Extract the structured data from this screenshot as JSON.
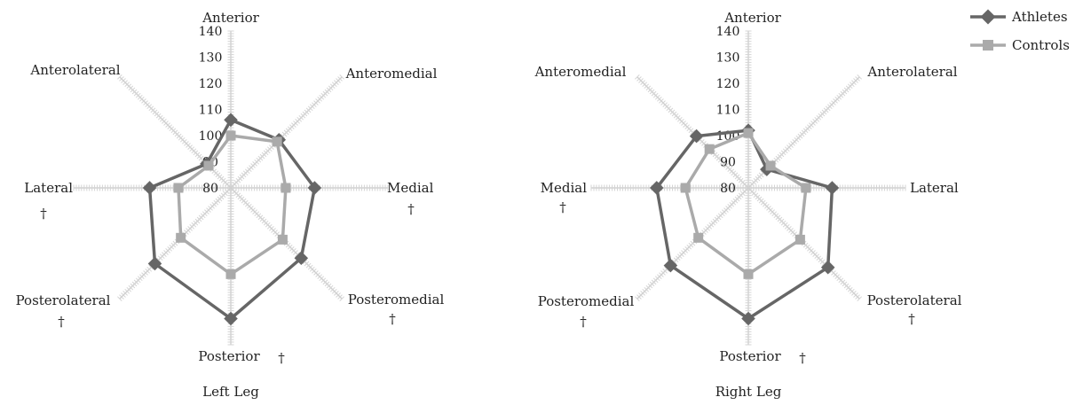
{
  "legend": {
    "position": "top-right",
    "entries": [
      {
        "name": "Athletes",
        "color": "#666666",
        "marker": "diamond"
      },
      {
        "name": "Controls",
        "color": "#aaaaaa",
        "marker": "square"
      }
    ]
  },
  "chart_data": [
    {
      "type": "radar",
      "title": "Left Leg",
      "axes": [
        "Anterior",
        "Anteromedial",
        "Medial",
        "Posteromedial",
        "Posterior",
        "Posterolateral",
        "Lateral",
        "Anterolateral"
      ],
      "significant": [
        false,
        false,
        true,
        true,
        true,
        true,
        true,
        false
      ],
      "significance_marker": "†",
      "rlim": [
        80,
        140
      ],
      "ticks": [
        "140",
        "130",
        "120",
        "110",
        "100",
        "90",
        "80"
      ],
      "series": [
        {
          "name": "Athletes",
          "values": [
            106,
            106,
            112,
            118,
            130,
            121,
            111,
            93
          ]
        },
        {
          "name": "Controls",
          "values": [
            100,
            105,
            101,
            108,
            113,
            107,
            100,
            92
          ]
        }
      ]
    },
    {
      "type": "radar",
      "title": "Right Leg",
      "axes": [
        "Anterior",
        "Anterolateral",
        "Lateral",
        "Posterolateral",
        "Posterior",
        "Posteromedial",
        "Medial",
        "Anteromedial"
      ],
      "significant": [
        false,
        false,
        false,
        true,
        true,
        true,
        true,
        false
      ],
      "significance_marker": "†",
      "rlim": [
        80,
        140
      ],
      "ticks": [
        "140",
        "130",
        "120",
        "110",
        "100",
        "90",
        "80"
      ],
      "series": [
        {
          "name": "Athletes",
          "values": [
            102,
            90,
            112,
            123,
            130,
            122,
            115,
            108
          ]
        },
        {
          "name": "Controls",
          "values": [
            101,
            92,
            102,
            108,
            113,
            107,
            104,
            101
          ]
        }
      ]
    }
  ]
}
